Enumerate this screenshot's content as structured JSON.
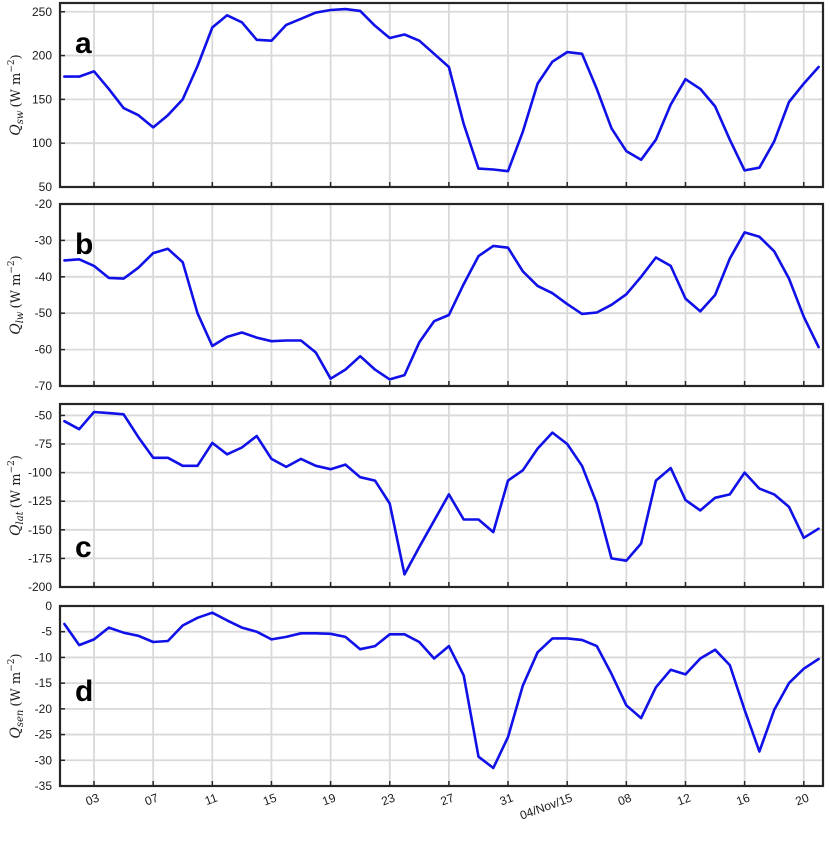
{
  "figure": {
    "line_color": "#1010e8",
    "grid_color": "#d9d9d9",
    "x_ticks": [
      "03",
      "07",
      "11",
      "15",
      "19",
      "23",
      "27",
      "31",
      "04/Nov/15",
      "08",
      "12",
      "16",
      "20"
    ],
    "x_tick_days": [
      3,
      7,
      11,
      15,
      19,
      23,
      27,
      31,
      35,
      39,
      43,
      47,
      51
    ]
  },
  "chart_data": [
    {
      "type": "line",
      "panel": "a",
      "ylabel_symbol": "Q",
      "ylabel_subscript": "sw",
      "ylabel_units": "(W m",
      "ylabel_exp": "−2",
      "ylim": [
        50,
        260
      ],
      "yticks": [
        "250",
        "200",
        "150",
        "100",
        "50"
      ],
      "ytick_values": [
        250,
        200,
        150,
        100,
        50
      ],
      "x": [
        1,
        2,
        3,
        4,
        5,
        6,
        7,
        8,
        9,
        10,
        11,
        12,
        13,
        14,
        15,
        16,
        17,
        18,
        19,
        20,
        21,
        22,
        23,
        24,
        25,
        26,
        27,
        28,
        29,
        30,
        31,
        32,
        33,
        34,
        35,
        36,
        37,
        38,
        39,
        40,
        41,
        42,
        43,
        44,
        45,
        46,
        47,
        48,
        49,
        50,
        51,
        52
      ],
      "y": [
        176,
        176,
        182,
        162,
        140,
        132,
        118,
        132,
        150,
        188,
        232,
        246,
        238,
        218,
        217,
        235,
        242,
        249,
        252,
        253,
        251,
        234,
        220,
        224,
        217,
        202,
        187,
        122,
        71,
        70,
        68,
        113,
        168,
        193,
        204,
        202,
        162,
        117,
        91,
        81,
        104,
        144,
        173,
        162,
        142,
        104,
        69,
        72,
        102,
        147,
        168,
        187
      ]
    },
    {
      "type": "line",
      "panel": "b",
      "ylabel_symbol": "Q",
      "ylabel_subscript": "lw",
      "ylabel_units": "(W m",
      "ylabel_exp": "−2",
      "ylim": [
        -70,
        -20
      ],
      "yticks": [
        "-20",
        "-30",
        "-40",
        "-50",
        "-60",
        "-70"
      ],
      "ytick_values": [
        -20,
        -30,
        -40,
        -50,
        -60,
        -70
      ],
      "x": [
        1,
        2,
        3,
        4,
        5,
        6,
        7,
        8,
        9,
        10,
        11,
        12,
        13,
        14,
        15,
        16,
        17,
        18,
        19,
        20,
        21,
        22,
        23,
        24,
        25,
        26,
        27,
        28,
        29,
        30,
        31,
        32,
        33,
        34,
        35,
        36,
        37,
        38,
        39,
        40,
        41,
        42,
        43,
        44,
        45,
        46,
        47,
        48,
        49,
        50,
        51,
        52
      ],
      "y": [
        -35.5,
        -35.2,
        -37,
        -40.3,
        -40.5,
        -37.5,
        -33.5,
        -32.3,
        -36,
        -50,
        -59,
        -56.5,
        -55.3,
        -56.7,
        -57.7,
        -57.5,
        -57.5,
        -60.8,
        -68,
        -65.5,
        -61.8,
        -65.5,
        -68.2,
        -67,
        -58,
        -52.2,
        -50.5,
        -42,
        -34.3,
        -31.5,
        -32,
        -38.5,
        -42.5,
        -44.5,
        -47.5,
        -50.2,
        -49.8,
        -47.7,
        -44.8,
        -40,
        -34.7,
        -37,
        -46,
        -49.5,
        -45,
        -35,
        -27.8,
        -29,
        -33,
        -40.5,
        -51,
        -59.3
      ]
    },
    {
      "type": "line",
      "panel": "c",
      "ylabel_symbol": "Q",
      "ylabel_subscript": "lat",
      "ylabel_units": "(W m",
      "ylabel_exp": "−2",
      "ylim": [
        -200,
        -40
      ],
      "yticks": [
        "-50",
        "-75",
        "-100",
        "-125",
        "-150",
        "-175",
        "-200"
      ],
      "ytick_values": [
        -50,
        -75,
        -100,
        -125,
        -150,
        -175,
        -200
      ],
      "x": [
        1,
        2,
        3,
        4,
        5,
        6,
        7,
        8,
        9,
        10,
        11,
        12,
        13,
        14,
        15,
        16,
        17,
        18,
        19,
        20,
        21,
        22,
        23,
        24,
        25,
        26,
        27,
        28,
        29,
        30,
        31,
        32,
        33,
        34,
        35,
        36,
        37,
        38,
        39,
        40,
        41,
        42,
        43,
        44,
        45,
        46,
        47,
        48,
        49,
        50,
        51,
        52
      ],
      "y": [
        -55,
        -62,
        -47,
        -48,
        -49,
        -69,
        -87,
        -87,
        -94,
        -94,
        -74,
        -84,
        -78,
        -68,
        -88,
        -95,
        -88,
        -94,
        -97,
        -93,
        -104,
        -107,
        -127,
        -189,
        -165,
        -142,
        -119,
        -141,
        -141,
        -152,
        -107,
        -98,
        -79,
        -65,
        -75,
        -94,
        -127,
        -175,
        -177,
        -162,
        -107,
        -96,
        -124,
        -133,
        -122,
        -119,
        -100,
        -114,
        -119,
        -130,
        -157,
        -149
      ]
    },
    {
      "type": "line",
      "panel": "d",
      "ylabel_symbol": "Q",
      "ylabel_subscript": "sen",
      "ylabel_units": "(W m",
      "ylabel_exp": "−2",
      "ylim": [
        -35,
        0
      ],
      "yticks": [
        "0",
        "-5",
        "-10",
        "-15",
        "-20",
        "-25",
        "-30",
        "-35"
      ],
      "ytick_values": [
        0,
        -5,
        -10,
        -15,
        -20,
        -25,
        -30,
        -35
      ],
      "x": [
        1,
        2,
        3,
        4,
        5,
        6,
        7,
        8,
        9,
        10,
        11,
        12,
        13,
        14,
        15,
        16,
        17,
        18,
        19,
        20,
        21,
        22,
        23,
        24,
        25,
        26,
        27,
        28,
        29,
        30,
        31,
        32,
        33,
        34,
        35,
        36,
        37,
        38,
        39,
        40,
        41,
        42,
        43,
        44,
        45,
        46,
        47,
        48,
        49,
        50,
        51,
        52
      ],
      "y": [
        -3.5,
        -7.6,
        -6.5,
        -4.2,
        -5.2,
        -5.8,
        -7,
        -6.8,
        -3.8,
        -2.3,
        -1.3,
        -2.8,
        -4.2,
        -5,
        -6.5,
        -6,
        -5.3,
        -5.3,
        -5.4,
        -6,
        -8.4,
        -7.8,
        -5.5,
        -5.5,
        -7,
        -10.2,
        -7.8,
        -13.5,
        -29.3,
        -31.5,
        -25.5,
        -15.5,
        -9,
        -6.3,
        -6.3,
        -6.6,
        -7.8,
        -13.2,
        -19.3,
        -21.8,
        -15.8,
        -12.4,
        -13.3,
        -10.2,
        -8.5,
        -11.5,
        -20.2,
        -28.3,
        -20.2,
        -15,
        -12.2,
        -10.3
      ]
    }
  ]
}
